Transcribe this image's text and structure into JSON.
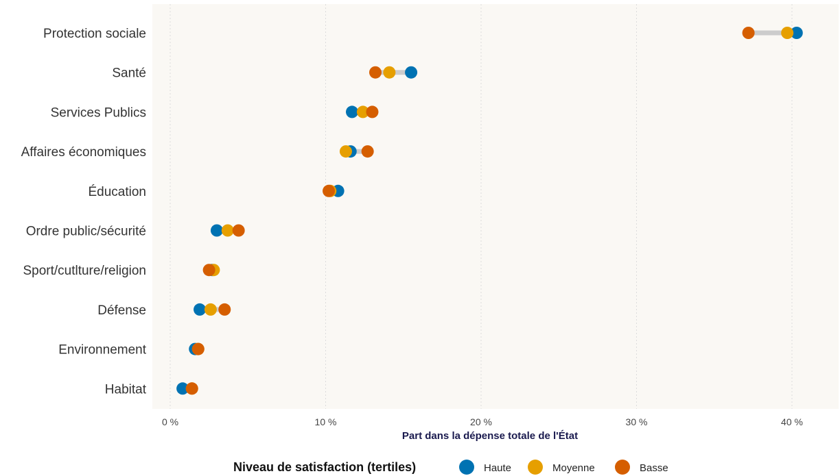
{
  "chart_data": {
    "type": "dot",
    "title": "",
    "xlabel": "Part dans la dépense totale de l'État",
    "ylabel": "",
    "xlim": [
      -1,
      43
    ],
    "x_ticks": [
      0,
      10,
      20,
      30,
      40
    ],
    "x_tick_labels": [
      "0 %",
      "10 %",
      "20 %",
      "30 %",
      "40 %"
    ],
    "grid": true,
    "legend_position": "bottom",
    "legend_title": "Niveau de satisfaction (tertiles)",
    "categories": [
      "Protection sociale",
      "Santé",
      "Services Publics",
      "Affaires économiques",
      "Éducation",
      "Ordre public/sécurité",
      "Sport/cutlture/religion",
      "Défense",
      "Environnement",
      "Habitat"
    ],
    "series": [
      {
        "name": "Haute",
        "color": "#0072B2",
        "values": [
          40.3,
          15.5,
          11.7,
          11.6,
          10.8,
          3.0,
          2.7,
          1.9,
          1.6,
          0.8
        ]
      },
      {
        "name": "Moyenne",
        "color": "#E69F00",
        "values": [
          39.7,
          14.1,
          12.4,
          11.3,
          10.3,
          3.7,
          2.8,
          2.6,
          1.8,
          1.4
        ]
      },
      {
        "name": "Basse",
        "color": "#D55E00",
        "values": [
          37.2,
          13.2,
          13.0,
          12.7,
          10.2,
          4.4,
          2.5,
          3.5,
          1.8,
          1.4
        ]
      }
    ]
  }
}
